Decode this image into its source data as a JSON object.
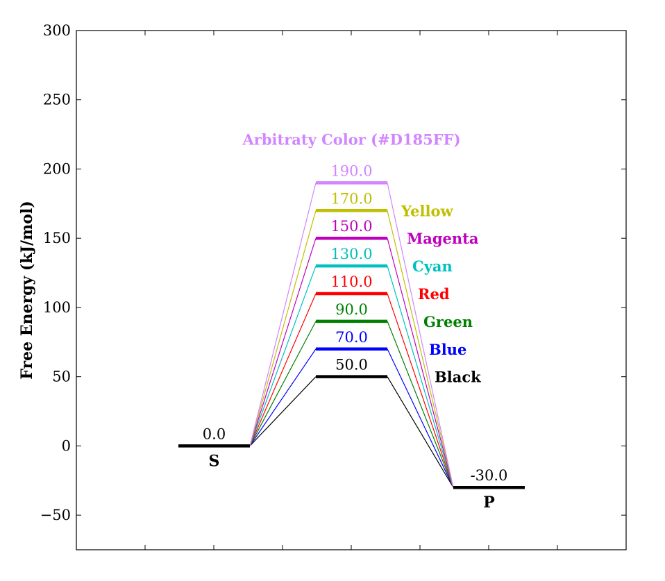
{
  "chart_data": {
    "type": "line",
    "ylabel": "Free Energy (kJ/mol)",
    "ylim": [
      -75,
      300
    ],
    "yticks": [
      -50,
      0,
      50,
      100,
      150,
      200,
      250,
      300
    ],
    "ytick_labels": [
      "−50",
      "0",
      "50",
      "100",
      "150",
      "200",
      "250",
      "300"
    ],
    "grid": false,
    "states": [
      {
        "name": "S",
        "value": 0.0,
        "value_label": "0.0"
      },
      {
        "name": "P",
        "value": -30.0,
        "value_label": "-30.0"
      }
    ],
    "transition_states": [
      {
        "series_label": "Black",
        "value": 50.0,
        "value_label": "50.0",
        "color": "#000000"
      },
      {
        "series_label": "Blue",
        "value": 70.0,
        "value_label": "70.0",
        "color": "#0000ff"
      },
      {
        "series_label": "Green",
        "value": 90.0,
        "value_label": "90.0",
        "color": "#008000"
      },
      {
        "series_label": "Red",
        "value": 110.0,
        "value_label": "110.0",
        "color": "#ff0000"
      },
      {
        "series_label": "Cyan",
        "value": 130.0,
        "value_label": "130.0",
        "color": "#00bfbf"
      },
      {
        "series_label": "Magenta",
        "value": 150.0,
        "value_label": "150.0",
        "color": "#bf00bf"
      },
      {
        "series_label": "Yellow",
        "value": 170.0,
        "value_label": "170.0",
        "color": "#bfbf00"
      },
      {
        "series_label": "Arbitraty Color (#D185FF)",
        "value": 190.0,
        "value_label": "190.0",
        "color": "#d185ff"
      }
    ]
  }
}
